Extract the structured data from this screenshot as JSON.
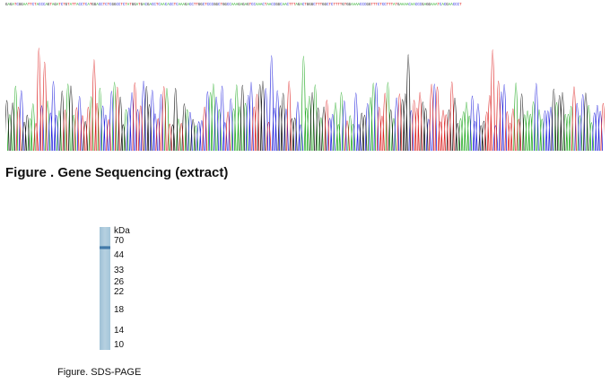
{
  "sequence_strip": {
    "bases": "GAGATCGGAATTCTACCCAGTAGATCTGTATTACCTCATGGACCTCTCGGCCTCTATGGATGACGACCTCAACACCTCAAAGACCTTGGCTCCCGGCTGGCCAAAGAGAGTCCAAACTAACCGGCAACTTTAGACTGGGCTTTGGCTCTTTTGTGGAAAACCCGGTTTCTCCTTTATGAAAACAACCCGAGGAAATCACGAACCCT"
  },
  "chromatogram": {
    "channels": [
      {
        "base": "A",
        "color": "#22aa22"
      },
      {
        "base": "C",
        "color": "#2222dd"
      },
      {
        "base": "G",
        "color": "#111111"
      },
      {
        "base": "T",
        "color": "#dd2222"
      }
    ]
  },
  "gene_figure": {
    "caption": "Figure . Gene Sequencing (extract)"
  },
  "sds_page": {
    "unit_label": "kDa",
    "markers": [
      "70",
      "44",
      "33",
      "26",
      "22",
      "18",
      "14",
      "10"
    ],
    "lane_color": "#a9c8dc",
    "band_color": "#2f6a9e",
    "caption": "Figure. SDS-PAGE"
  }
}
